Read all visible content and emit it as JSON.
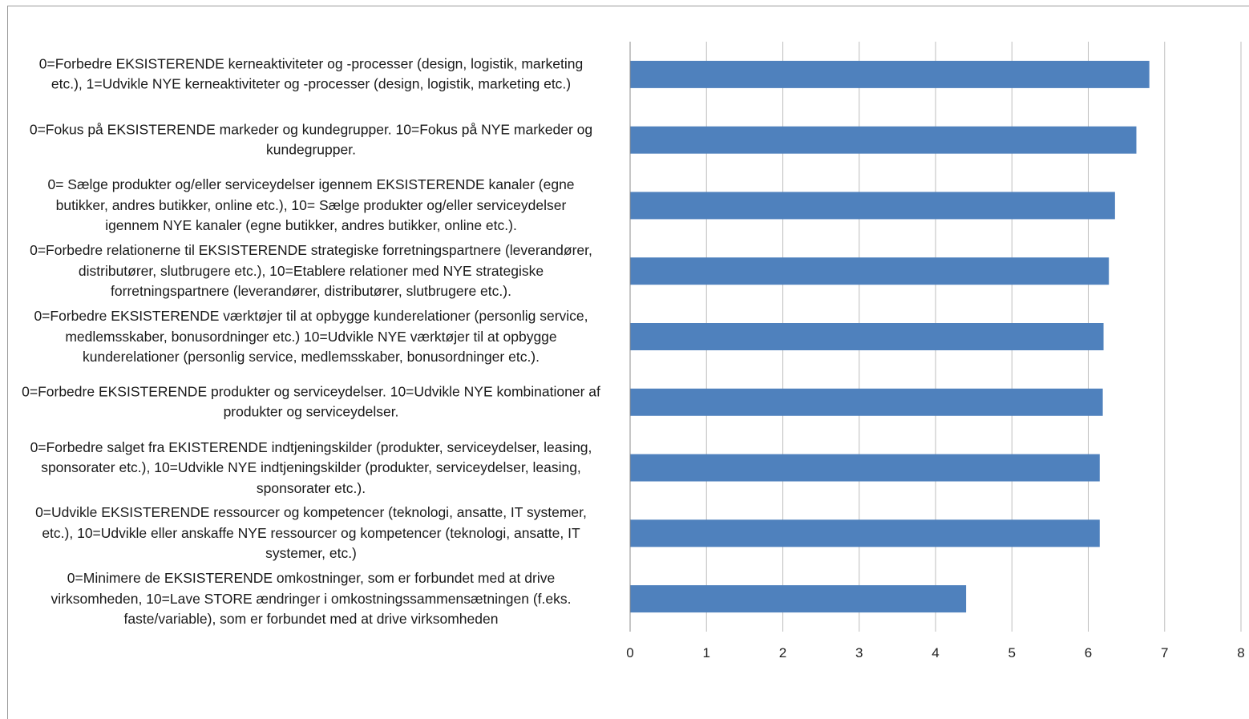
{
  "chart_data": {
    "type": "bar",
    "orientation": "horizontal",
    "title": "",
    "xlabel": "",
    "ylabel": "",
    "xlim": [
      0,
      8
    ],
    "xticks": [
      "0",
      "1",
      "2",
      "3",
      "4",
      "5",
      "6",
      "7",
      "8"
    ],
    "grid": "vertical",
    "legend": "none",
    "bar_color": "#4F81BD",
    "categories": [
      "0=Forbedre EKSISTERENDE kerneaktiviteter og -processer (design, logistik, marketing\netc.), 1=Udvikle NYE kerneaktiviteter og -processer (design, logistik, marketing  etc.)",
      "0=Fokus på EKSISTERENDE markeder og kundegrupper. 10=Fokus på NYE markeder og\nkundegrupper.",
      "0= Sælge produkter og/eller serviceydelser igennem EKSISTERENDE kanaler (egne\nbutikker, andres butikker, online etc.), 10= Sælge produkter og/eller serviceydelser\nigennem NYE kanaler (egne butikker, andres butikker, online etc.).",
      "0=Forbedre relationerne til EKSISTERENDE strategiske forretningspartnere (leverandører,\ndistributører, slutbrugere etc.), 10=Etablere relationer med NYE strategiske\nforretningspartnere (leverandører, distributører, slutbrugere etc.).",
      "0=Forbedre EKSISTERENDE værktøjer til at opbygge kunderelationer (personlig service,\nmedlemsskaber, bonusordninger etc.) 10=Udvikle NYE værktøjer til at opbygge\nkunderelationer (personlig service, medlemsskaber, bonusordninger etc.).",
      "0=Forbedre EKSISTERENDE produkter og serviceydelser. 10=Udvikle NYE kombinationer af\nprodukter og serviceydelser.",
      "0=Forbedre salget fra EKISTERENDE indtjeningskilder (produkter, serviceydelser, leasing,\nsponsorater etc.), 10=Udvikle NYE indtjeningskilder (produkter, serviceydelser, leasing,\nsponsorater etc.).",
      "0=Udvikle EKSISTERENDE ressourcer og kompetencer (teknologi, ansatte, IT systemer,\netc.), 10=Udvikle eller anskaffe NYE ressourcer og kompetencer (teknologi, ansatte, IT\nsystemer, etc.)",
      "0=Minimere de EKSISTERENDE omkostninger, som er forbundet med at drive\nvirksomheden, 10=Lave STORE ændringer i omkostningssammensætningen (f.eks.\nfaste/variable), som er forbundet med at drive virksomheden"
    ],
    "values": [
      6.8,
      6.63,
      6.35,
      6.27,
      6.2,
      6.19,
      6.15,
      6.15,
      4.4
    ]
  }
}
